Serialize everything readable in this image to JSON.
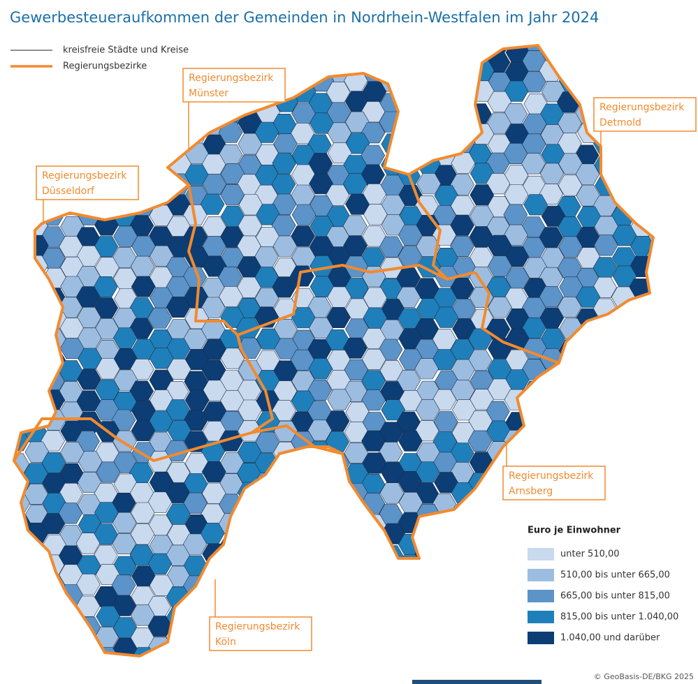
{
  "header": {
    "title": "Gewerbesteueraufkommen der Gemeinden in Nordrhein-Westfalen im Jahr 2024"
  },
  "line_legend": [
    {
      "label": "kreisfreie Städte und Kreise",
      "color": "#222222"
    },
    {
      "label": "Regierungsbezirke",
      "color": "#f28a2e"
    }
  ],
  "regions": [
    {
      "lines": [
        "Regierungsbezirk",
        "Münster"
      ]
    },
    {
      "lines": [
        "Regierungsbezirk",
        "Düsseldorf"
      ]
    },
    {
      "lines": [
        "Regierungsbezirk",
        "Detmold"
      ]
    },
    {
      "lines": [
        "Regierungsbezirk",
        "Arnsberg"
      ]
    },
    {
      "lines": [
        "Regierungsbezirk",
        "Köln"
      ]
    }
  ],
  "legend": {
    "title": "Euro je Einwohner",
    "classes": [
      {
        "label": "unter 510,00",
        "color": "#c9d9ee"
      },
      {
        "label": "510,00 bis unter 665,00",
        "color": "#9dbde0"
      },
      {
        "label": "665,00 bis unter 815,00",
        "color": "#5c93c8"
      },
      {
        "label": "815,00 bis unter 1.040,00",
        "color": "#1f7fba"
      },
      {
        "label": "1.040,00 und darüber",
        "color": "#0c3d74"
      }
    ]
  },
  "footer": {
    "copyright": "© GeoBasis-DE/BKG 2025"
  }
}
